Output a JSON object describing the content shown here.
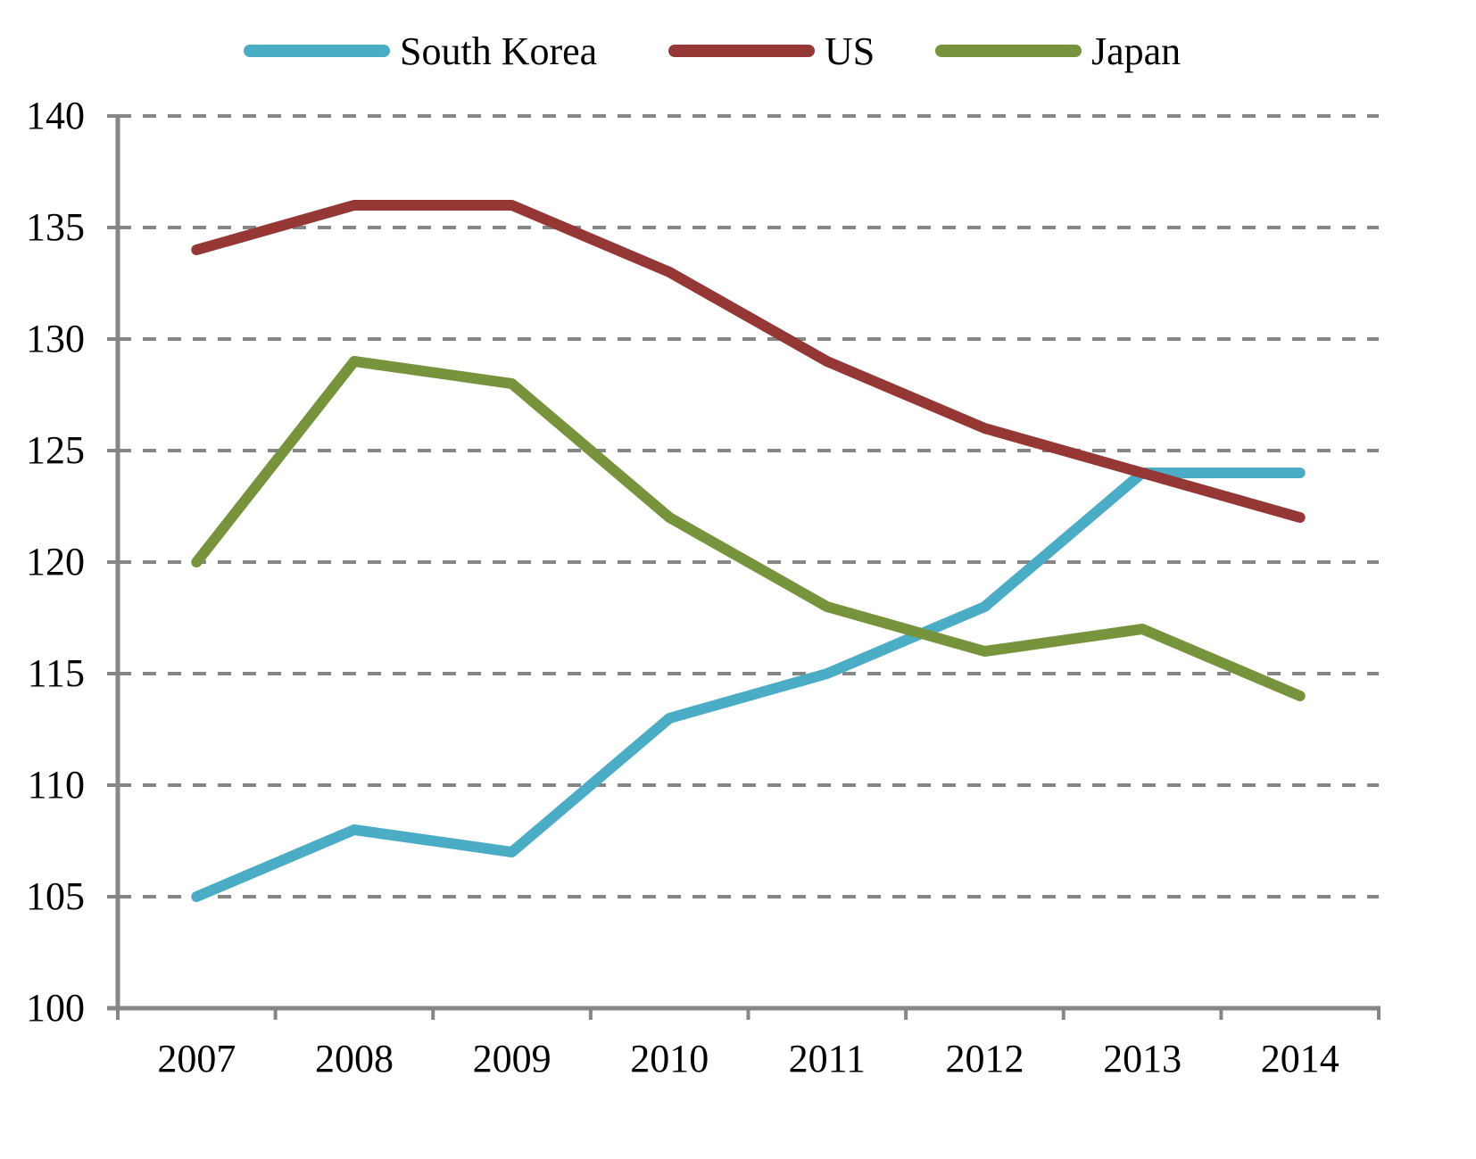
{
  "chart_data": {
    "type": "line",
    "title": "",
    "xlabel": "",
    "ylabel": "",
    "categories": [
      "2007",
      "2008",
      "2009",
      "2010",
      "2011",
      "2012",
      "2013",
      "2014"
    ],
    "ylim": [
      100,
      140
    ],
    "yticks": [
      "100",
      "105",
      "110",
      "115",
      "120",
      "125",
      "130",
      "135",
      "140"
    ],
    "grid": "horizontal-dashed",
    "legend_position": "top",
    "series": [
      {
        "name": "South Korea",
        "color": "#4BACC6",
        "values": [
          105,
          108,
          107,
          113,
          115,
          118,
          124,
          124
        ]
      },
      {
        "name": "US",
        "color": "#953735",
        "values": [
          134,
          136,
          136,
          133,
          129,
          126,
          124,
          122
        ]
      },
      {
        "name": "Japan",
        "color": "#77933C",
        "values": [
          120,
          129,
          128,
          122,
          118,
          116,
          117,
          114
        ]
      }
    ]
  },
  "colors": {
    "axis": "#868686",
    "grid": "#868686"
  }
}
